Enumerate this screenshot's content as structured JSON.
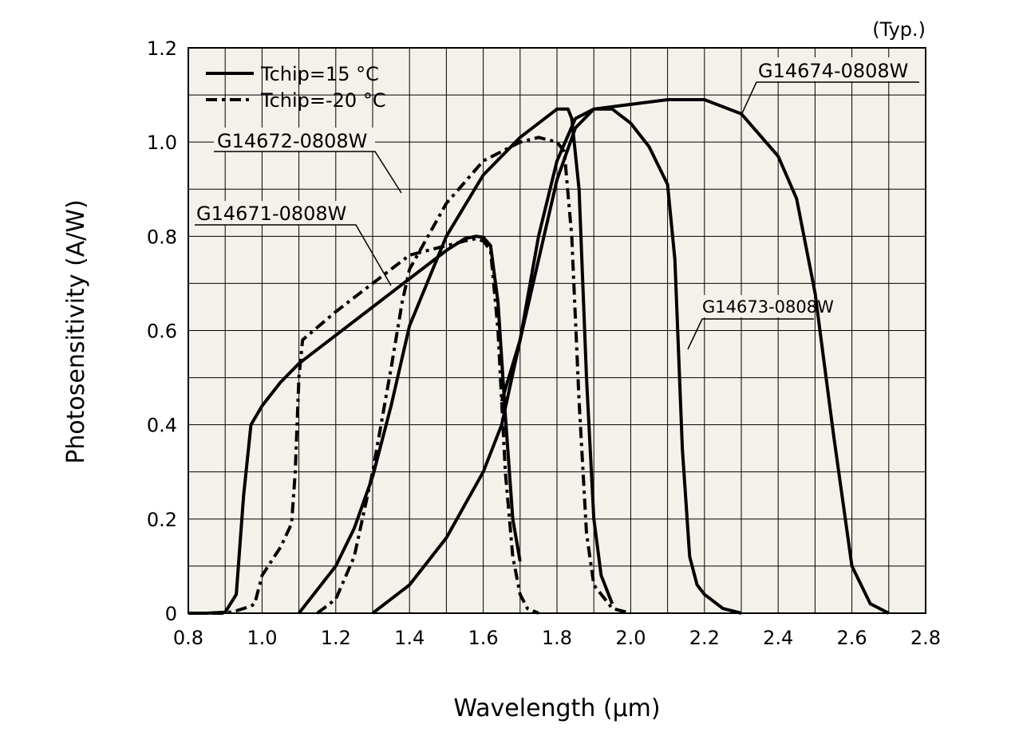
{
  "chart_data": {
    "type": "line",
    "title": "",
    "note": "(Typ.)",
    "xlabel": "Wavelength (µm)",
    "ylabel": "Photosensitivity (A/W)",
    "xlim": [
      0.8,
      2.8
    ],
    "ylim": [
      0,
      1.2
    ],
    "xticks": [
      "0.8",
      "1.0",
      "1.2",
      "1.4",
      "1.6",
      "1.8",
      "2.0",
      "2.2",
      "2.4",
      "2.6",
      "2.8"
    ],
    "yticks": [
      "0",
      "0.2",
      "0.4",
      "0.6",
      "0.8",
      "1.0",
      "1.2"
    ],
    "grid": true,
    "plot_background": "#f4f1ea",
    "legend_position": "top-left",
    "legend": [
      {
        "label": "Tchip=15 °C",
        "style": "solid"
      },
      {
        "label": "Tchip=-20 °C",
        "style": "dashdot"
      }
    ],
    "series": [
      {
        "name": "G14671-0808W",
        "condition": "Tchip=15 °C",
        "x": [
          0.8,
          0.85,
          0.9,
          0.93,
          0.95,
          0.97,
          1.0,
          1.05,
          1.1,
          1.2,
          1.3,
          1.4,
          1.5,
          1.55,
          1.58,
          1.6,
          1.62,
          1.64,
          1.66,
          1.68,
          1.7
        ],
        "y": [
          0,
          0,
          0.002,
          0.04,
          0.25,
          0.4,
          0.44,
          0.49,
          0.53,
          0.59,
          0.65,
          0.71,
          0.77,
          0.795,
          0.8,
          0.798,
          0.78,
          0.66,
          0.42,
          0.2,
          0.11
        ]
      },
      {
        "name": "G14671-0808W",
        "condition": "Tchip=-20 °C",
        "x": [
          0.8,
          0.85,
          0.9,
          0.93,
          0.95,
          0.97,
          0.98,
          1.0,
          1.05,
          1.08,
          1.09,
          1.1,
          1.11,
          1.2,
          1.3,
          1.4,
          1.5,
          1.55,
          1.58,
          1.6,
          1.62,
          1.64,
          1.66,
          1.68,
          1.7,
          1.72,
          1.75
        ],
        "y": [
          0,
          0,
          0,
          0.005,
          0.01,
          0.015,
          0.02,
          0.08,
          0.14,
          0.19,
          0.3,
          0.5,
          0.58,
          0.64,
          0.7,
          0.76,
          0.78,
          0.79,
          0.795,
          0.79,
          0.77,
          0.6,
          0.3,
          0.12,
          0.04,
          0.01,
          0
        ]
      },
      {
        "name": "G14672-0808W",
        "condition": "Tchip=15 °C",
        "x": [
          1.1,
          1.2,
          1.25,
          1.3,
          1.35,
          1.4,
          1.5,
          1.6,
          1.7,
          1.8,
          1.83,
          1.84,
          1.86,
          1.88,
          1.9,
          1.92,
          1.95
        ],
        "y": [
          0,
          0.1,
          0.18,
          0.29,
          0.44,
          0.61,
          0.8,
          0.93,
          1.01,
          1.07,
          1.07,
          1.05,
          0.9,
          0.5,
          0.2,
          0.08,
          0.02
        ]
      },
      {
        "name": "G14672-0808W",
        "condition": "Tchip=-20 °C",
        "x": [
          1.15,
          1.2,
          1.25,
          1.3,
          1.35,
          1.38,
          1.4,
          1.5,
          1.6,
          1.7,
          1.75,
          1.8,
          1.82,
          1.84,
          1.86,
          1.88,
          1.9,
          1.95,
          2.0
        ],
        "y": [
          0,
          0.03,
          0.12,
          0.3,
          0.52,
          0.66,
          0.73,
          0.87,
          0.96,
          1.0,
          1.01,
          1.0,
          0.98,
          0.8,
          0.45,
          0.17,
          0.06,
          0.01,
          0
        ]
      },
      {
        "name": "G14673-0808W",
        "condition": "Tchip=15 °C",
        "x": [
          1.3,
          1.4,
          1.5,
          1.6,
          1.65,
          1.7,
          1.75,
          1.8,
          1.85,
          1.9,
          1.95,
          2.0,
          2.05,
          2.1,
          2.12,
          2.14,
          2.16,
          2.18,
          2.2,
          2.25,
          2.3
        ],
        "y": [
          0,
          0.06,
          0.16,
          0.3,
          0.4,
          0.58,
          0.8,
          0.96,
          1.05,
          1.07,
          1.07,
          1.04,
          0.99,
          0.91,
          0.75,
          0.35,
          0.12,
          0.06,
          0.04,
          0.01,
          0
        ]
      },
      {
        "name": "G14674-0808W",
        "condition": "Tchip=15 °C",
        "x": [
          1.65,
          1.7,
          1.75,
          1.8,
          1.85,
          1.9,
          2.0,
          2.1,
          2.2,
          2.3,
          2.4,
          2.45,
          2.5,
          2.55,
          2.6,
          2.65,
          2.7
        ],
        "y": [
          0.45,
          0.58,
          0.75,
          0.92,
          1.03,
          1.07,
          1.08,
          1.09,
          1.09,
          1.06,
          0.97,
          0.88,
          0.68,
          0.38,
          0.1,
          0.02,
          0
        ]
      }
    ],
    "annotations": [
      {
        "text": "G14671-0808W"
      },
      {
        "text": "G14672-0808W"
      },
      {
        "text": "G14673-0808W"
      },
      {
        "text": "G14674-0808W"
      }
    ]
  }
}
